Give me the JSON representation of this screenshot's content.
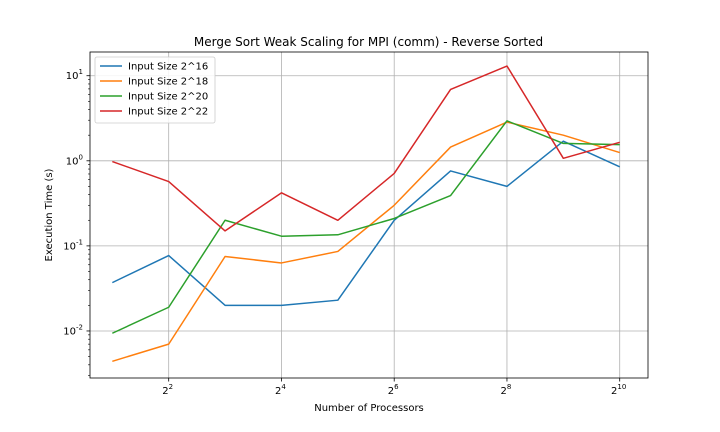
{
  "chart_data": {
    "type": "line",
    "title": "Merge Sort Weak Scaling for MPI (comm) - Reverse Sorted",
    "xlabel": "Number of Processors",
    "ylabel": "Execution Time (s)",
    "x_scale": "log2",
    "y_scale": "log10",
    "grid": true,
    "legend_position": "top-left",
    "x": [
      2,
      4,
      8,
      16,
      32,
      64,
      128,
      256,
      512,
      1024
    ],
    "xticks": [
      {
        "base": "2",
        "exp": "2",
        "value": 4
      },
      {
        "base": "2",
        "exp": "4",
        "value": 16
      },
      {
        "base": "2",
        "exp": "6",
        "value": 64
      },
      {
        "base": "2",
        "exp": "8",
        "value": 256
      },
      {
        "base": "2",
        "exp": "10",
        "value": 1024
      }
    ],
    "yticks": [
      {
        "base": "10",
        "exp": "-2",
        "value": 0.01
      },
      {
        "base": "10",
        "exp": "-1",
        "value": 0.1
      },
      {
        "base": "10",
        "exp": "0",
        "value": 1
      },
      {
        "base": "10",
        "exp": "1",
        "value": 10
      }
    ],
    "xlim": [
      1.52,
      1450
    ],
    "ylim": [
      0.0028,
      19
    ],
    "series": [
      {
        "name": "Input Size 2^16",
        "color": "#1f77b4",
        "values": [
          0.037,
          0.077,
          0.02,
          0.02,
          0.023,
          0.2,
          0.76,
          0.5,
          1.7,
          0.85
        ]
      },
      {
        "name": "Input Size 2^18",
        "color": "#ff7f0e",
        "values": [
          0.0044,
          0.007,
          0.075,
          0.063,
          0.086,
          0.3,
          1.45,
          2.85,
          2.0,
          1.25
        ]
      },
      {
        "name": "Input Size 2^20",
        "color": "#2ca02c",
        "values": [
          0.0094,
          0.019,
          0.2,
          0.13,
          0.135,
          0.21,
          0.39,
          2.95,
          1.6,
          1.55
        ]
      },
      {
        "name": "Input Size 2^22",
        "color": "#d62728",
        "values": [
          0.98,
          0.57,
          0.15,
          0.42,
          0.2,
          0.71,
          6.9,
          13.0,
          1.07,
          1.65
        ]
      }
    ]
  }
}
